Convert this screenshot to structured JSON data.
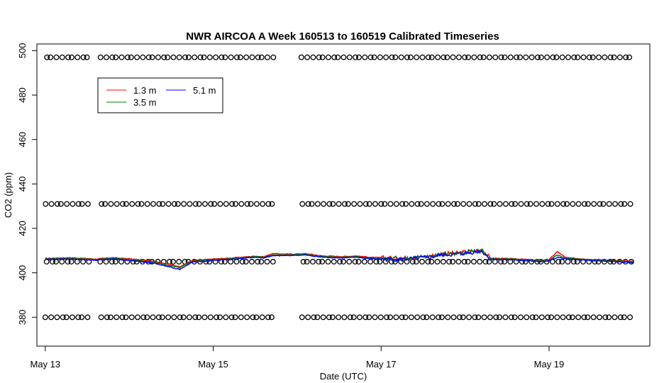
{
  "chart_data": {
    "type": "line",
    "title": "NWR AIRCOA A  Week 160513 to 160519  Calibrated Timeseries",
    "xlabel": "Date (UTC)",
    "ylabel": "CO2 (ppm)",
    "xlim_days": [
      -0.1,
      7.2
    ],
    "ylim": [
      367,
      503
    ],
    "x_ticks": [
      {
        "day": 0,
        "label": "May 13"
      },
      {
        "day": 2,
        "label": "May 15"
      },
      {
        "day": 4,
        "label": "May 17"
      },
      {
        "day": 6,
        "label": "May 19"
      }
    ],
    "y_ticks": [
      380,
      400,
      420,
      440,
      460,
      480,
      500
    ],
    "legend": {
      "placement": "top-left",
      "entries": [
        {
          "name": "1.3 m",
          "color": "#ff0000"
        },
        {
          "name": "3.5 m",
          "color": "#008000"
        },
        {
          "name": "5.1 m",
          "color": "#0000ff"
        }
      ]
    },
    "series": [
      {
        "name": "1.3 m",
        "color": "#ff0000",
        "points": [
          [
            0,
            406.5
          ],
          [
            0.3,
            406.8
          ],
          [
            0.6,
            406.2
          ],
          [
            0.8,
            406.8
          ],
          [
            1.0,
            406.3
          ],
          [
            1.3,
            405.2
          ],
          [
            1.6,
            402.8
          ],
          [
            1.75,
            405.5
          ],
          [
            2.0,
            406.2
          ],
          [
            2.2,
            406.6
          ],
          [
            2.5,
            407.5
          ],
          [
            2.6,
            407.2
          ],
          [
            2.7,
            408.6
          ],
          [
            2.9,
            408.4
          ],
          [
            3.1,
            408.6
          ],
          [
            3.3,
            407.6
          ],
          [
            3.55,
            407.3
          ],
          [
            3.7,
            407.6
          ],
          [
            3.9,
            406.9
          ],
          [
            4.2,
            406.6
          ],
          [
            4.35,
            406.8
          ],
          [
            4.5,
            407.3
          ],
          [
            4.6,
            407.6
          ],
          [
            4.7,
            408.5
          ],
          [
            4.9,
            408.9
          ],
          [
            5.05,
            409.6
          ],
          [
            5.2,
            410.3
          ],
          [
            5.3,
            406.6
          ],
          [
            5.6,
            406.3
          ],
          [
            5.9,
            405.6
          ],
          [
            6.0,
            405.9
          ],
          [
            6.1,
            409.5
          ],
          [
            6.2,
            406.8
          ],
          [
            6.5,
            406.0
          ],
          [
            6.8,
            405.5
          ],
          [
            7.0,
            405.0
          ]
        ]
      },
      {
        "name": "3.5 m",
        "color": "#008000",
        "points": [
          [
            0,
            406.3
          ],
          [
            0.3,
            406.5
          ],
          [
            0.6,
            406.0
          ],
          [
            0.8,
            406.6
          ],
          [
            1.0,
            406.0
          ],
          [
            1.3,
            404.8
          ],
          [
            1.6,
            402.3
          ],
          [
            1.75,
            405.2
          ],
          [
            2.0,
            406.0
          ],
          [
            2.2,
            406.3
          ],
          [
            2.5,
            407.3
          ],
          [
            2.6,
            407.0
          ],
          [
            2.7,
            408.0
          ],
          [
            2.9,
            408.1
          ],
          [
            3.1,
            408.3
          ],
          [
            3.3,
            407.3
          ],
          [
            3.55,
            407.0
          ],
          [
            3.7,
            407.3
          ],
          [
            3.9,
            406.6
          ],
          [
            4.2,
            406.3
          ],
          [
            4.35,
            406.6
          ],
          [
            4.5,
            407.1
          ],
          [
            4.6,
            407.3
          ],
          [
            4.7,
            408.3
          ],
          [
            4.9,
            408.6
          ],
          [
            5.05,
            409.4
          ],
          [
            5.2,
            410.1
          ],
          [
            5.3,
            406.4
          ],
          [
            5.6,
            406.1
          ],
          [
            5.9,
            405.4
          ],
          [
            6.0,
            405.6
          ],
          [
            6.1,
            408.0
          ],
          [
            6.2,
            406.5
          ],
          [
            6.5,
            405.8
          ],
          [
            6.8,
            405.3
          ],
          [
            7.0,
            404.8
          ]
        ]
      },
      {
        "name": "5.1 m",
        "color": "#0000ff",
        "points": [
          [
            0,
            406.0
          ],
          [
            0.3,
            406.2
          ],
          [
            0.6,
            405.6
          ],
          [
            0.8,
            406.3
          ],
          [
            1.0,
            405.6
          ],
          [
            1.3,
            404.3
          ],
          [
            1.6,
            401.5
          ],
          [
            1.75,
            404.8
          ],
          [
            2.0,
            405.6
          ],
          [
            2.2,
            406.0
          ],
          [
            2.5,
            407.0
          ],
          [
            2.6,
            406.7
          ],
          [
            2.7,
            407.6
          ],
          [
            2.9,
            407.8
          ],
          [
            3.1,
            408.0
          ],
          [
            3.3,
            407.0
          ],
          [
            3.55,
            406.7
          ],
          [
            3.7,
            407.0
          ],
          [
            3.9,
            406.3
          ],
          [
            4.2,
            406.0
          ],
          [
            4.35,
            406.3
          ],
          [
            4.5,
            406.8
          ],
          [
            4.6,
            407.0
          ],
          [
            4.7,
            408.0
          ],
          [
            4.9,
            408.3
          ],
          [
            5.05,
            409.0
          ],
          [
            5.2,
            409.8
          ],
          [
            5.3,
            406.1
          ],
          [
            5.6,
            405.8
          ],
          [
            5.9,
            405.0
          ],
          [
            6.0,
            405.3
          ],
          [
            6.1,
            407.0
          ],
          [
            6.2,
            406.2
          ],
          [
            6.5,
            405.5
          ],
          [
            6.8,
            405.0
          ],
          [
            7.0,
            404.5
          ]
        ]
      }
    ],
    "calibration_markers": {
      "symbol": "circle",
      "levels": [
        380,
        405,
        431,
        497
      ],
      "segments_days": [
        [
          0,
          0.5
        ],
        [
          0.65,
          2.7
        ],
        [
          3.05,
          7.0
        ]
      ]
    }
  }
}
